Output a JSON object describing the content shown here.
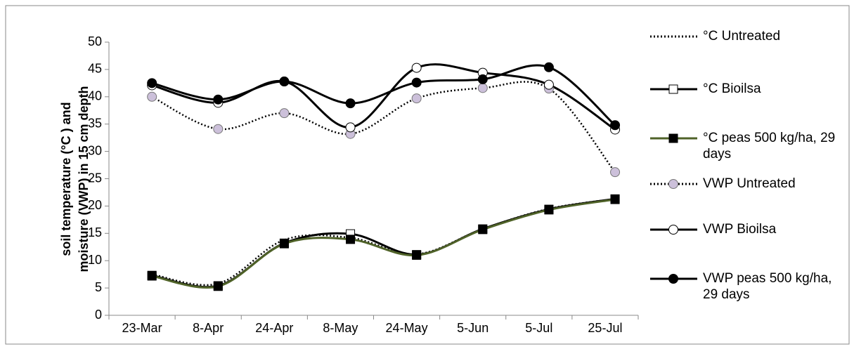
{
  "chart_data": {
    "type": "line",
    "ylabel": [
      "soil temperature (°C ) and",
      "moisture (VWP)  in 15 cm depth"
    ],
    "categories": [
      "23-Mar",
      "8-Apr",
      "24-Apr",
      "8-May",
      "24-May",
      "5-Jun",
      "5-Jul",
      "25-Jul"
    ],
    "ylim": [
      0,
      50
    ],
    "yticks": [
      0,
      5,
      10,
      15,
      20,
      25,
      30,
      35,
      40,
      45,
      50
    ],
    "grid": false,
    "smooth": true,
    "legend": "right",
    "series": [
      {
        "name": "°C Untreated",
        "color": "#000000",
        "line_style": "dotted",
        "marker": "none",
        "values": [
          7.5,
          5.8,
          13.8,
          14.2,
          11.2,
          15.8,
          19.5,
          21.3
        ]
      },
      {
        "name": "°C Bioilsa",
        "color": "#000000",
        "line_style": "solid",
        "marker": "square-open",
        "values": [
          7.3,
          5.4,
          13.2,
          14.9,
          11.1,
          15.8,
          19.4,
          21.3
        ]
      },
      {
        "name": "°C peas 500 kg/ha, 29 days",
        "color": "#4f6228",
        "line_style": "solid",
        "marker": "square-filled",
        "values": [
          7.2,
          5.3,
          13.1,
          13.9,
          11.0,
          15.7,
          19.3,
          21.2
        ]
      },
      {
        "name": "VWP Untreated",
        "color": "#000000",
        "line_style": "dotted",
        "marker": "circle-lavender",
        "values": [
          40.0,
          34.1,
          37.0,
          33.2,
          39.7,
          41.6,
          41.5,
          26.2
        ]
      },
      {
        "name": "VWP Bioilsa",
        "color": "#000000",
        "line_style": "solid",
        "marker": "circle-open",
        "values": [
          42.1,
          38.9,
          42.8,
          34.4,
          45.3,
          44.4,
          42.2,
          34.0
        ]
      },
      {
        "name": "VWP peas 500 kg/ha, 29 days",
        "color": "#000000",
        "line_style": "solid",
        "marker": "circle-filled",
        "values": [
          42.5,
          39.5,
          42.8,
          38.8,
          42.6,
          43.2,
          45.4,
          34.8
        ]
      }
    ]
  }
}
